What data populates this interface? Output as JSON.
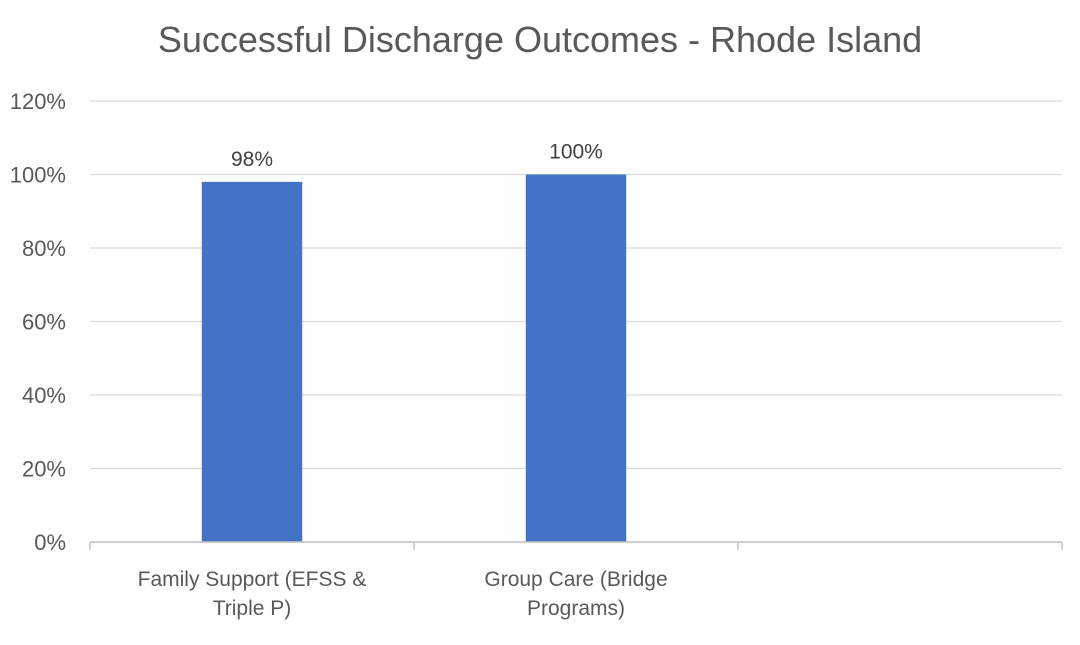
{
  "chart_data": {
    "type": "bar",
    "title": "Successful Discharge Outcomes - Rhode Island",
    "xlabel": "",
    "ylabel": "",
    "categories": [
      [
        "Family Support (EFSS &",
        "Triple P)"
      ],
      [
        "Group Care (Bridge",
        "Programs)"
      ],
      [
        "",
        ""
      ]
    ],
    "values": [
      98,
      100,
      null
    ],
    "value_labels": [
      "98%",
      "100%",
      ""
    ],
    "ylim": [
      0,
      120
    ],
    "ytick_values": [
      0,
      20,
      40,
      60,
      80,
      100,
      120
    ],
    "ytick_labels": [
      "0%",
      "20%",
      "40%",
      "60%",
      "80%",
      "100%",
      "120%"
    ],
    "grid": true,
    "legend": "none",
    "bar_color": "#4472C4",
    "gridline_color": "#d9d9d9",
    "axis_color": "#bfbfbf",
    "text_color": "#595959"
  }
}
